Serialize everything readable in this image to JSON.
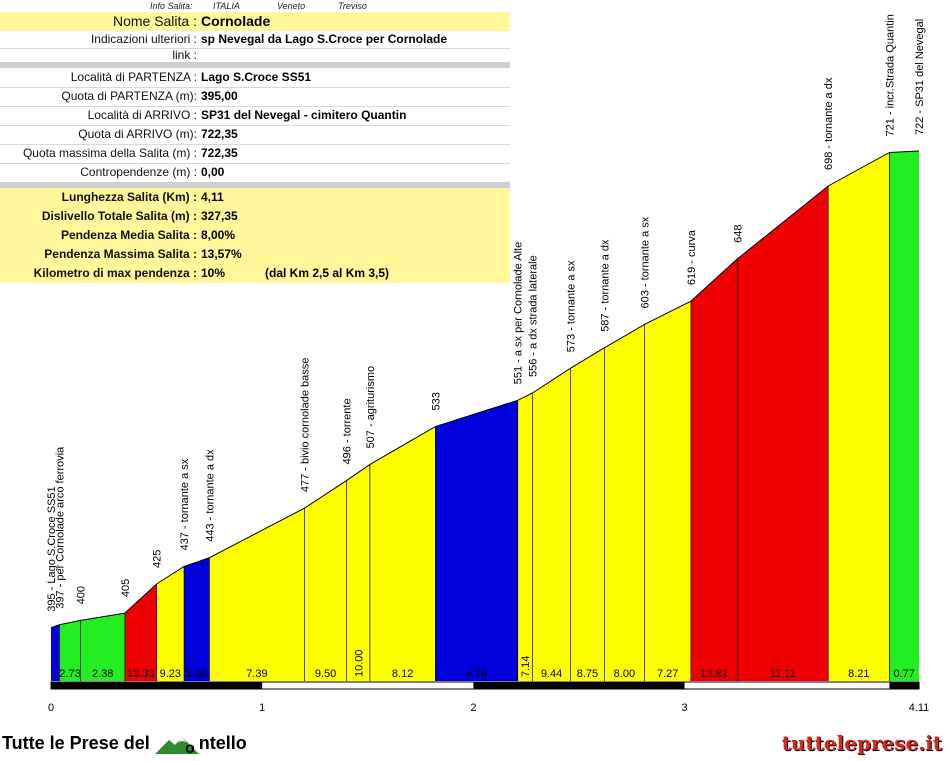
{
  "header": {
    "info_label": "Info Salita:",
    "country": "ITALIA",
    "region": "Veneto",
    "province": "Treviso"
  },
  "rows": [
    {
      "label": "Nome Salita :",
      "value": "Cornolade"
    },
    {
      "label": "Indicazioni ulteriori :",
      "value": "sp Nevegal da Lago S.Croce per Cornolade"
    },
    {
      "label": "link :",
      "value": ""
    },
    {
      "label": "Località di PARTENZA :",
      "value": "Lago S.Croce SS51"
    },
    {
      "label": "Quota di PARTENZA (m):",
      "value": "395,00"
    },
    {
      "label": "Località di ARRIVO :",
      "value": "SP31 del Nevegal - cimitero Quantin"
    },
    {
      "label": "Quota di ARRIVO (m):",
      "value": "722,35"
    },
    {
      "label": "Quota massima della Salita (m) :",
      "value": "722,35"
    },
    {
      "label": "Contropendenze (m) :",
      "value": "0,00"
    },
    {
      "label": "Lunghezza Salita (Km) :",
      "value": "4,11"
    },
    {
      "label": "Dislivello Totale Salita (m) :",
      "value": "327,35"
    },
    {
      "label": "Pendenza Media Salita :",
      "value": "8,00%"
    },
    {
      "label": "Pendenza Massima Salita :",
      "value": "13,57%"
    },
    {
      "label": "Kilometro di max pendenza :",
      "value": "10%",
      "note": "(dal Km 2,5 al Km 3,5)"
    }
  ],
  "colors": {
    "yellow": "#ffff00",
    "green": "#22ee22",
    "red": "#ee0000",
    "blue": "#0000dd",
    "info_yellow": "#fff799"
  },
  "footer": {
    "left_before": "Tutte le Prese del",
    "left_after": "ntello",
    "right": "tutteleprese.it"
  },
  "chart_data": {
    "type": "area",
    "xlabel": "",
    "ylabel": "",
    "xlim": [
      0,
      4.11
    ],
    "x_ticks": [
      "0",
      "1",
      "2",
      "3",
      "4.11"
    ],
    "points": [
      {
        "x": 0.0,
        "y": 395,
        "label": "395 - Lago S.Croce SS51"
      },
      {
        "x": 0.04,
        "y": 397,
        "label": "397 - per Cornolade arco ferrovia"
      },
      {
        "x": 0.14,
        "y": 400,
        "label": "400"
      },
      {
        "x": 0.35,
        "y": 405,
        "label": "405"
      },
      {
        "x": 0.5,
        "y": 425,
        "label": "425"
      },
      {
        "x": 0.63,
        "y": 437,
        "label": "437 - tornante a sx"
      },
      {
        "x": 0.75,
        "y": 443,
        "label": "443 - tornante a dx"
      },
      {
        "x": 1.2,
        "y": 477,
        "label": "477 - bivio cornolade basse"
      },
      {
        "x": 1.4,
        "y": 496,
        "label": "496 - torrente"
      },
      {
        "x": 1.51,
        "y": 507,
        "label": "507 - agriturismo"
      },
      {
        "x": 1.82,
        "y": 533,
        "label": "533"
      },
      {
        "x": 2.21,
        "y": 551,
        "label": "551 - a sx per Cornolade Alte"
      },
      {
        "x": 2.28,
        "y": 556,
        "label": "556 - a dx strada laterale"
      },
      {
        "x": 2.46,
        "y": 573,
        "label": "573 - tornante a sx"
      },
      {
        "x": 2.62,
        "y": 587,
        "label": "587 - tornante a dx"
      },
      {
        "x": 2.81,
        "y": 603,
        "label": "603 - tornante a sx"
      },
      {
        "x": 3.03,
        "y": 619,
        "label": "619 - curva"
      },
      {
        "x": 3.25,
        "y": 648,
        "label": "648"
      },
      {
        "x": 3.68,
        "y": 698,
        "label": "698 - tornante a dx"
      },
      {
        "x": 3.97,
        "y": 721,
        "label": "721 - incr.Strada Quantin"
      },
      {
        "x": 4.11,
        "y": 722,
        "label": "722 - SP31 del Nevegal"
      }
    ],
    "segments": [
      {
        "grade": "",
        "color": "blue"
      },
      {
        "grade": "2.73",
        "color": "green"
      },
      {
        "grade": "2.38",
        "color": "green"
      },
      {
        "grade": "13.33",
        "color": "red"
      },
      {
        "grade": "9.23",
        "color": "yellow"
      },
      {
        "grade": "5.00",
        "color": "blue"
      },
      {
        "grade": "7.39",
        "color": "yellow"
      },
      {
        "grade": "9.50",
        "color": "yellow"
      },
      {
        "grade": "10.00",
        "color": "yellow",
        "vertical": true
      },
      {
        "grade": "8.12",
        "color": "yellow"
      },
      {
        "grade": "4.74",
        "color": "blue"
      },
      {
        "grade": "7.14",
        "color": "yellow",
        "vertical": true
      },
      {
        "grade": "9.44",
        "color": "yellow"
      },
      {
        "grade": "8.75",
        "color": "yellow"
      },
      {
        "grade": "8.00",
        "color": "yellow"
      },
      {
        "grade": "7.27",
        "color": "yellow"
      },
      {
        "grade": "13.81",
        "color": "red"
      },
      {
        "grade": "11.11",
        "color": "red"
      },
      {
        "grade": "8.21",
        "color": "yellow"
      },
      {
        "grade": "0.77",
        "color": "green"
      }
    ]
  }
}
